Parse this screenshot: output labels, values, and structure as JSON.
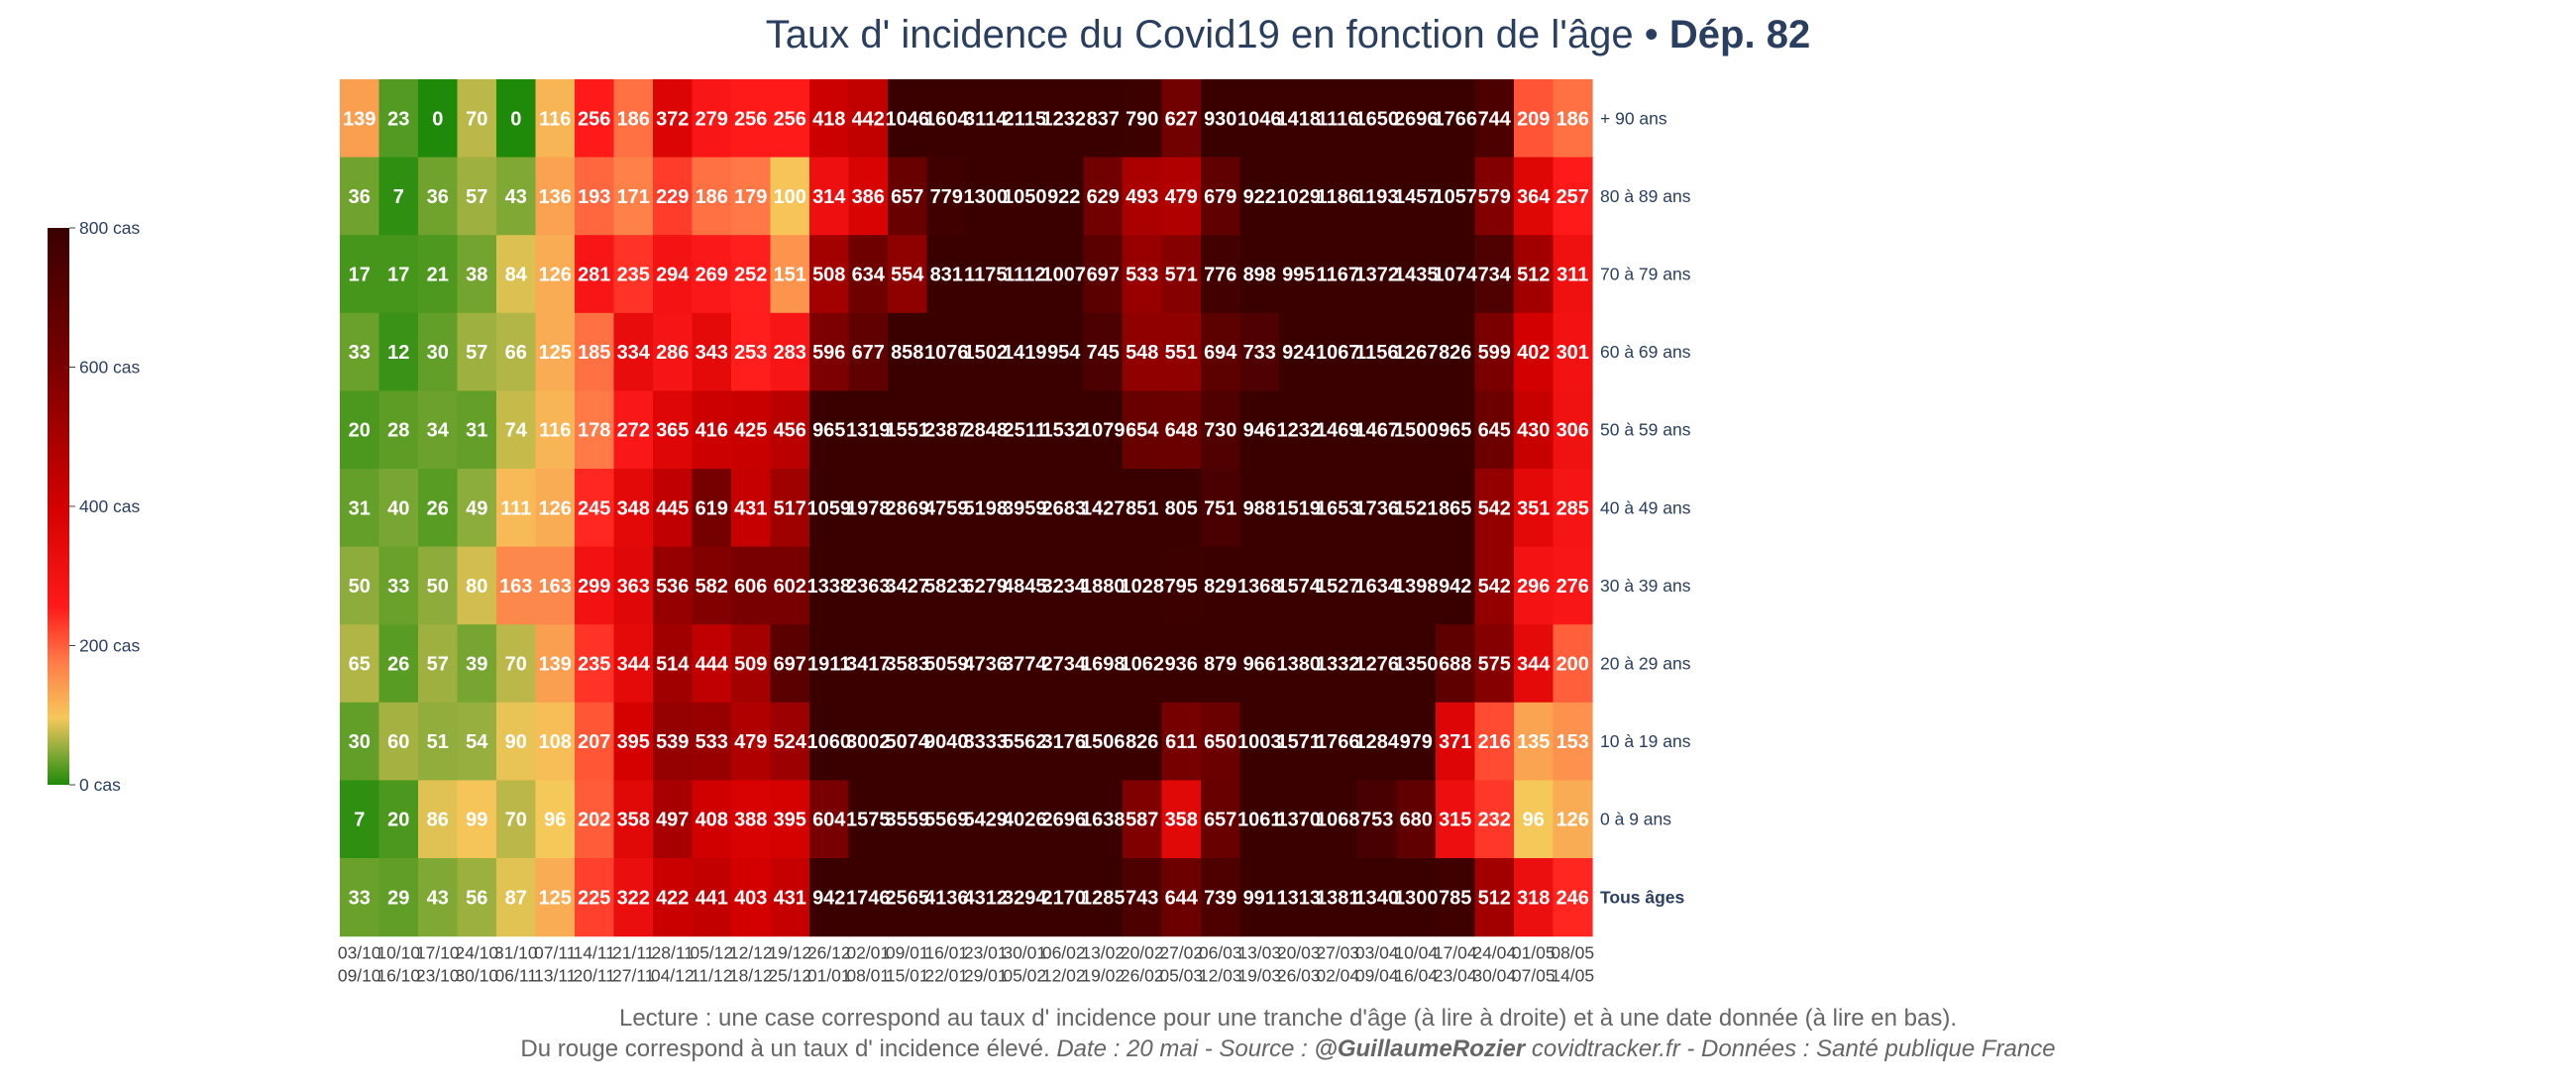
{
  "title": {
    "main": "Taux d' incidence du Covid19 en fonction de l'âge • ",
    "bold": "Dép. 82"
  },
  "colors": {
    "scale": [
      [
        0,
        "#1f8a0a"
      ],
      [
        0.06,
        "#8aab3a"
      ],
      [
        0.12,
        "#f5c85a"
      ],
      [
        0.22,
        "#ff7c48"
      ],
      [
        0.32,
        "#ff1a1a"
      ],
      [
        0.5,
        "#d40000"
      ],
      [
        0.75,
        "#7a0000"
      ],
      [
        1,
        "#3a0000"
      ]
    ],
    "cell_text": "#ffffff",
    "axis_text": "#2a3f5f",
    "footer_text": "#666666"
  },
  "colorbar": {
    "ticks": [
      {
        "value": 800,
        "label": "800 cas"
      },
      {
        "value": 600,
        "label": "600 cas"
      },
      {
        "value": 400,
        "label": "400 cas"
      },
      {
        "value": 200,
        "label": "200 cas"
      },
      {
        "value": 0,
        "label": "0 cas"
      }
    ]
  },
  "chart_data": {
    "type": "heatmap",
    "title": "Taux d' incidence du Covid19 en fonction de l'âge • Dép. 82",
    "zmin": 0,
    "zmax": 800,
    "x": [
      [
        "03/10",
        "09/10"
      ],
      [
        "10/10",
        "16/10"
      ],
      [
        "17/10",
        "23/10"
      ],
      [
        "24/10",
        "30/10"
      ],
      [
        "31/10",
        "06/11"
      ],
      [
        "07/11",
        "13/11"
      ],
      [
        "14/11",
        "20/11"
      ],
      [
        "21/11",
        "27/11"
      ],
      [
        "28/11",
        "04/12"
      ],
      [
        "05/12",
        "11/12"
      ],
      [
        "12/12",
        "18/12"
      ],
      [
        "19/12",
        "25/12"
      ],
      [
        "26/12",
        "01/01"
      ],
      [
        "02/01",
        "08/01"
      ],
      [
        "09/01",
        "15/01"
      ],
      [
        "16/01",
        "22/01"
      ],
      [
        "23/01",
        "29/01"
      ],
      [
        "30/01",
        "05/02"
      ],
      [
        "06/02",
        "12/02"
      ],
      [
        "13/02",
        "19/02"
      ],
      [
        "20/02",
        "26/02"
      ],
      [
        "27/02",
        "05/03"
      ],
      [
        "06/03",
        "12/03"
      ],
      [
        "13/03",
        "19/03"
      ],
      [
        "20/03",
        "26/03"
      ],
      [
        "27/03",
        "02/04"
      ],
      [
        "03/04",
        "09/04"
      ],
      [
        "10/04",
        "16/04"
      ],
      [
        "17/04",
        "23/04"
      ],
      [
        "24/04",
        "30/04"
      ],
      [
        "01/05",
        "07/05"
      ],
      [
        "08/05",
        "14/05"
      ]
    ],
    "rows": [
      {
        "label": "+ 90 ans",
        "bold": false,
        "values": [
          139,
          23,
          0,
          70,
          0,
          116,
          256,
          186,
          372,
          279,
          256,
          256,
          418,
          442,
          1046,
          1604,
          3114,
          2115,
          1232,
          837,
          790,
          627,
          930,
          1046,
          1418,
          1116,
          1650,
          2696,
          1766,
          744,
          209,
          186
        ]
      },
      {
        "label": "80 à 89 ans",
        "bold": false,
        "values": [
          36,
          7,
          36,
          57,
          43,
          136,
          193,
          171,
          229,
          186,
          179,
          100,
          314,
          386,
          657,
          779,
          1300,
          1050,
          922,
          629,
          493,
          479,
          679,
          922,
          1029,
          1186,
          1193,
          1457,
          1057,
          579,
          364,
          257
        ]
      },
      {
        "label": "70 à 79 ans",
        "bold": false,
        "values": [
          17,
          17,
          21,
          38,
          84,
          126,
          281,
          235,
          294,
          269,
          252,
          151,
          508,
          634,
          554,
          831,
          1175,
          1112,
          1007,
          697,
          533,
          571,
          776,
          898,
          995,
          1167,
          1372,
          1435,
          1074,
          734,
          512,
          311
        ]
      },
      {
        "label": "60 à 69 ans",
        "bold": false,
        "values": [
          33,
          12,
          30,
          57,
          66,
          125,
          185,
          334,
          286,
          343,
          253,
          283,
          596,
          677,
          858,
          1076,
          1502,
          1419,
          954,
          745,
          548,
          551,
          694,
          733,
          924,
          1067,
          1156,
          1267,
          826,
          599,
          402,
          301
        ]
      },
      {
        "label": "50 à 59 ans",
        "bold": false,
        "values": [
          20,
          28,
          34,
          31,
          74,
          116,
          178,
          272,
          365,
          416,
          425,
          456,
          965,
          1319,
          1551,
          2387,
          2848,
          2511,
          1532,
          1079,
          654,
          648,
          730,
          946,
          1232,
          1469,
          1467,
          1500,
          965,
          645,
          430,
          306
        ]
      },
      {
        "label": "40 à 49 ans",
        "bold": false,
        "values": [
          31,
          40,
          26,
          49,
          111,
          126,
          245,
          348,
          445,
          619,
          431,
          517,
          1059,
          1978,
          2869,
          4759,
          5198,
          3959,
          2683,
          1427,
          851,
          805,
          751,
          988,
          1519,
          1653,
          1736,
          1521,
          865,
          542,
          351,
          285
        ]
      },
      {
        "label": "30 à 39 ans",
        "bold": false,
        "values": [
          50,
          33,
          50,
          80,
          163,
          163,
          299,
          363,
          536,
          582,
          606,
          602,
          1338,
          2363,
          3427,
          5823,
          6279,
          4845,
          3234,
          1880,
          1028,
          795,
          829,
          1368,
          1574,
          1527,
          1634,
          1398,
          942,
          542,
          296,
          276
        ]
      },
      {
        "label": "20 à 29 ans",
        "bold": false,
        "values": [
          65,
          26,
          57,
          39,
          70,
          139,
          235,
          344,
          514,
          444,
          509,
          697,
          1911,
          3417,
          3583,
          5059,
          4736,
          3774,
          2734,
          1698,
          1062,
          936,
          879,
          966,
          1380,
          1332,
          1276,
          1350,
          688,
          575,
          344,
          200
        ]
      },
      {
        "label": "10 à 19 ans",
        "bold": false,
        "values": [
          30,
          60,
          51,
          54,
          90,
          108,
          207,
          395,
          539,
          533,
          479,
          524,
          1060,
          3002,
          5074,
          9040,
          8333,
          5562,
          3176,
          1506,
          826,
          611,
          650,
          1003,
          1571,
          1766,
          1284,
          979,
          371,
          216,
          135,
          153
        ]
      },
      {
        "label": "0 à 9 ans",
        "bold": false,
        "values": [
          7,
          20,
          86,
          99,
          70,
          96,
          202,
          358,
          497,
          408,
          388,
          395,
          604,
          1575,
          3559,
          5569,
          5429,
          4026,
          2696,
          1638,
          587,
          358,
          657,
          1061,
          1370,
          1068,
          753,
          680,
          315,
          232,
          96,
          126
        ]
      },
      {
        "label": "Tous âges",
        "bold": true,
        "values": [
          33,
          29,
          43,
          56,
          87,
          125,
          225,
          322,
          422,
          441,
          403,
          431,
          942,
          1746,
          2565,
          4136,
          4312,
          3294,
          2170,
          1285,
          743,
          644,
          739,
          991,
          1313,
          1381,
          1340,
          1300,
          785,
          512,
          318,
          246
        ]
      }
    ]
  },
  "footer": {
    "line1": "Lecture : une case correspond au taux d' incidence pour une tranche d'âge (à lire à droite) et à une date donnée (à lire en bas).",
    "line2_plain": "Du rouge correspond à un taux d' incidence élevé.  ",
    "line2_italic1": "Date : 20 mai - Source : ",
    "line2_bold": "@GuillaumeRozier",
    "line2_italic2": " covidtracker.fr - Données : Santé publique France"
  }
}
